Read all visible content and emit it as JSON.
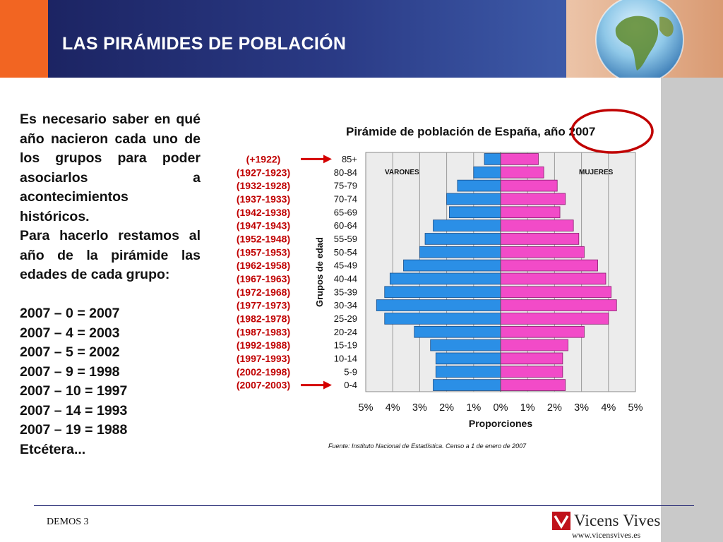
{
  "header": {
    "title": "LAS PIRÁMIDES DE POBLACIÓN"
  },
  "left_text": {
    "paragraph1": "Es necesario saber en qué año nacieron cada uno de los grupos para poder asociarlos a acontecimientos históricos.",
    "paragraph2": "Para hacerlo restamos al año de la pirámide las edades de cada grupo:",
    "equations": [
      "2007 – 0 = 2007",
      "2007 – 4 = 2003",
      "2007 – 5 = 2002",
      "2007 – 9 = 1998",
      "2007 – 10 = 1997",
      "2007 – 14 = 1993",
      "2007 – 19 = 1988",
      "Etcétera..."
    ]
  },
  "birth_years": [
    "(+1922)",
    "(1927-1923)",
    "(1932-1928)",
    "(1937-1933)",
    "(1942-1938)",
    "(1947-1943)",
    "(1952-1948)",
    "(1957-1953)",
    "(1962-1958)",
    "(1967-1963)",
    "(1972-1968)",
    "(1977-1973)",
    "(1982-1978)",
    "(1987-1983)",
    "(1992-1988)",
    "(1997-1993)",
    "(2002-1998)",
    "(2007-2003)"
  ],
  "chart_data": {
    "type": "bar",
    "orientation": "horizontal-pyramid",
    "title": "Pirámide de población de España, año 2007",
    "xlabel": "Proporciones",
    "ylabel": "Grupos de edad",
    "categories": [
      "85+",
      "80-84",
      "75-79",
      "70-74",
      "65-69",
      "60-64",
      "55-59",
      "50-54",
      "45-49",
      "40-44",
      "35-39",
      "30-34",
      "25-29",
      "20-24",
      "15-19",
      "10-14",
      "5-9",
      "0-4"
    ],
    "series": [
      {
        "name": "VARONES",
        "color": "#2b8fe6",
        "values": [
          0.6,
          1.0,
          1.6,
          2.0,
          1.9,
          2.5,
          2.8,
          3.0,
          3.6,
          4.1,
          4.3,
          4.6,
          4.3,
          3.2,
          2.6,
          2.4,
          2.4,
          2.5
        ]
      },
      {
        "name": "MUJERES",
        "color": "#f24bc8",
        "values": [
          1.4,
          1.6,
          2.1,
          2.4,
          2.2,
          2.7,
          2.9,
          3.1,
          3.6,
          3.9,
          4.1,
          4.3,
          4.0,
          3.1,
          2.5,
          2.3,
          2.3,
          2.4
        ]
      }
    ],
    "xticks": [
      "5%",
      "4%",
      "3%",
      "2%",
      "1%",
      "0%",
      "1%",
      "2%",
      "3%",
      "4%",
      "5%"
    ],
    "xlim": [
      -5,
      5
    ],
    "grid": true,
    "source": "Fuente: Instituto Nacional de Estadística. Censo a 1 de enero de 2007"
  },
  "footer": {
    "label": "DEMOS 3",
    "brand": "Vicens Vives",
    "url": "www.vicensvives.es"
  },
  "colors": {
    "header_dark": "#1c2463",
    "accent_orange": "#f26522",
    "male_bar": "#2b8fe6",
    "female_bar": "#f24bc8",
    "birth_year_text": "#c00000",
    "highlight_circle": "#c00000"
  }
}
